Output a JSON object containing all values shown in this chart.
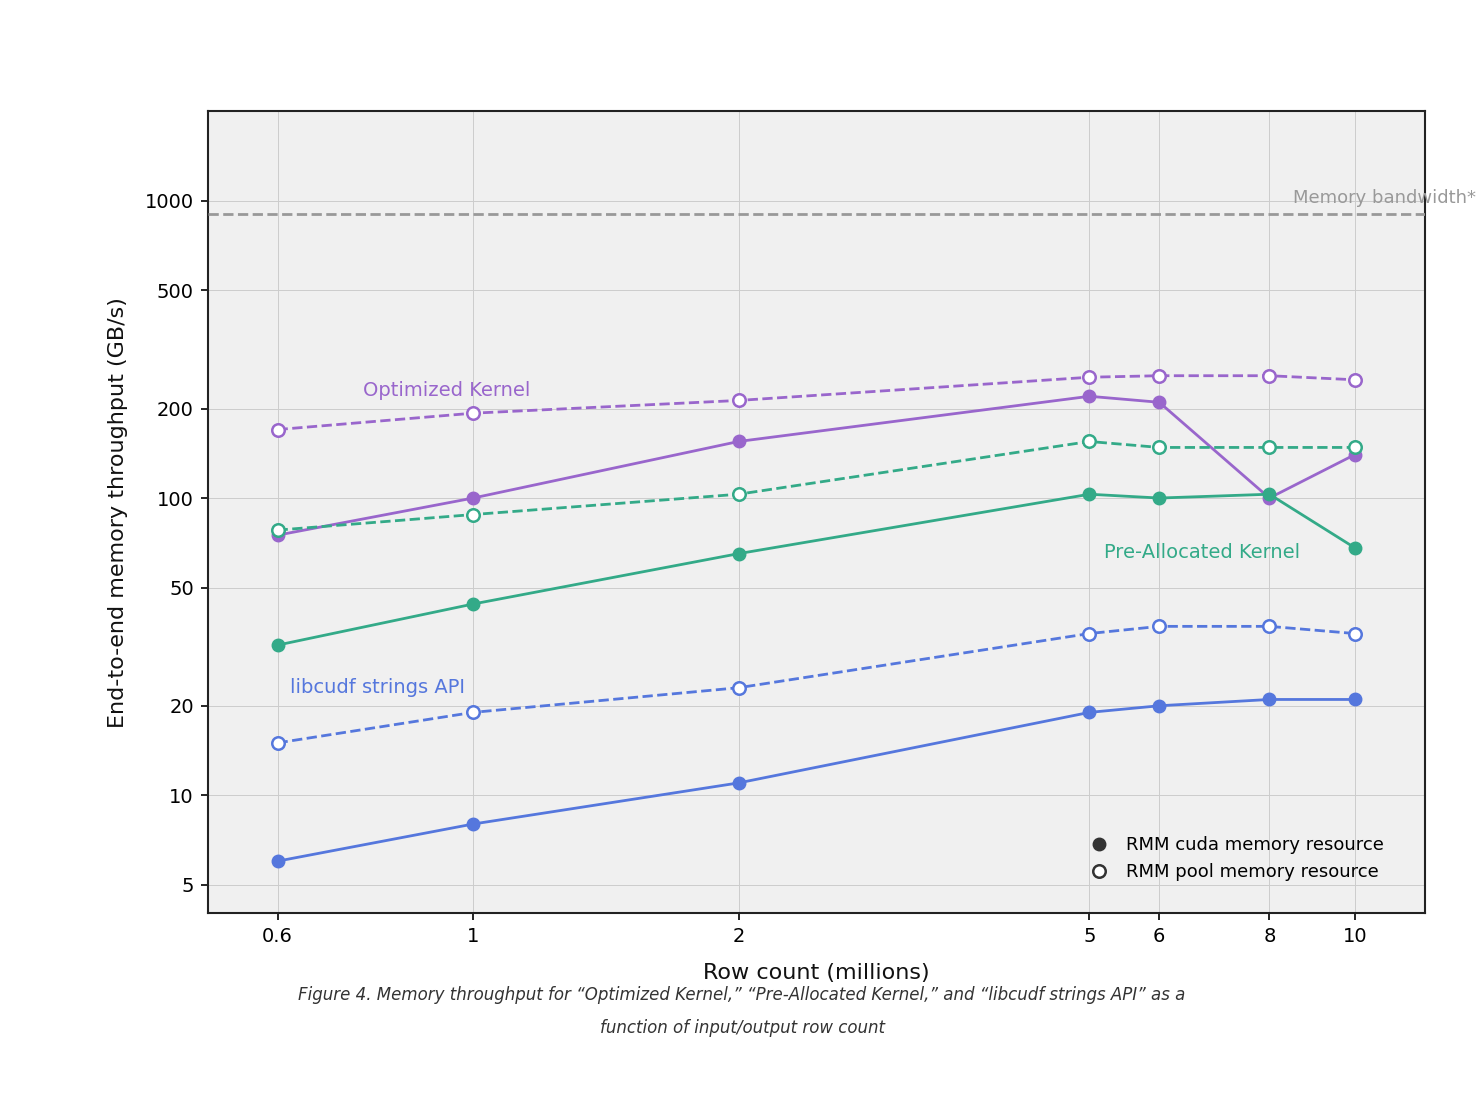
{
  "x": [
    0.6,
    1,
    2,
    5,
    6,
    8,
    10
  ],
  "memory_bandwidth_y": 900,
  "opt_kernel_cuda": [
    75,
    100,
    155,
    220,
    210,
    100,
    140
  ],
  "opt_kernel_pool": [
    170,
    193,
    213,
    255,
    258,
    258,
    250
  ],
  "prealloc_kernel_cuda": [
    32,
    44,
    65,
    103,
    100,
    103,
    68
  ],
  "prealloc_kernel_pool": [
    78,
    88,
    103,
    155,
    148,
    148,
    148
  ],
  "libcudf_cuda": [
    6,
    8,
    11,
    19,
    20,
    21,
    21
  ],
  "libcudf_pool": [
    15,
    19,
    23,
    35,
    37,
    37,
    35
  ],
  "opt_kernel_color": "#9966cc",
  "prealloc_kernel_color": "#33aa88",
  "libcudf_color": "#5577dd",
  "memory_bw_color": "#999999",
  "plot_bg_color": "#f0f0f0",
  "fig_bg_color": "#ffffff",
  "ylabel": "End-to-end memory throughput (GB/s)",
  "xlabel": "Row count (millions)",
  "caption_line1": "Figure 4. Memory throughput for “Optimized Kernel,” “Pre-Allocated Kernel,” and “libcudf strings API” as a",
  "caption_line2": "function of input/output row count",
  "legend_cuda": "RMM cuda memory resource",
  "legend_pool": "RMM pool memory resource",
  "label_opt": "Optimized Kernel",
  "label_prealloc": "Pre-Allocated Kernel",
  "label_libcudf": "libcudf strings API",
  "label_membw": "Memory bandwidth*",
  "yticks": [
    5,
    10,
    20,
    50,
    100,
    200,
    500,
    1000
  ],
  "xticks": [
    0.6,
    1,
    2,
    5,
    6,
    8,
    10
  ],
  "xtick_labels": [
    "0.6",
    "1",
    "2",
    "5",
    "6",
    "8",
    "10"
  ],
  "ylim_low": 4,
  "ylim_high": 2000,
  "xlim_low": 0.5,
  "xlim_high": 12
}
